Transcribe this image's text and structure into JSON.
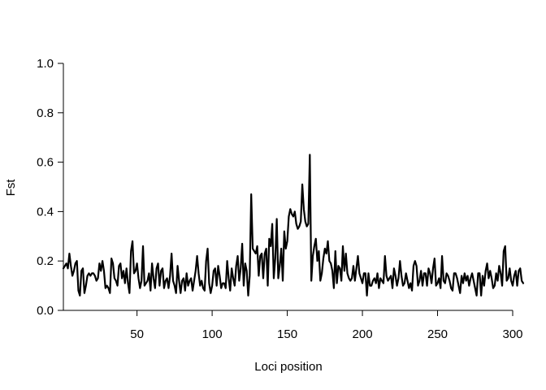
{
  "chart_data": {
    "type": "line",
    "title": "",
    "xlabel": "Loci position",
    "ylabel": "Fst",
    "xlim": [
      1,
      300
    ],
    "ylim": [
      0,
      1
    ],
    "x_ticks": [
      50,
      100,
      150,
      200,
      250,
      300
    ],
    "y_ticks": [
      0.0,
      0.2,
      0.4,
      0.6,
      0.8,
      1.0
    ],
    "y_tick_labels": [
      "0.0",
      "0.2",
      "0.4",
      "0.6",
      "0.8",
      "1.0"
    ],
    "grid": false,
    "legend": "none",
    "line_color": "#000000",
    "series": [
      {
        "x_start": 1,
        "x_step": 1,
        "values": [
          0.17,
          0.18,
          0.19,
          0.17,
          0.23,
          0.18,
          0.14,
          0.16,
          0.19,
          0.2,
          0.08,
          0.06,
          0.16,
          0.17,
          0.07,
          0.1,
          0.14,
          0.15,
          0.14,
          0.15,
          0.15,
          0.14,
          0.12,
          0.13,
          0.19,
          0.16,
          0.2,
          0.16,
          0.09,
          0.1,
          0.09,
          0.07,
          0.21,
          0.19,
          0.13,
          0.12,
          0.1,
          0.18,
          0.19,
          0.13,
          0.16,
          0.11,
          0.17,
          0.11,
          0.07,
          0.24,
          0.28,
          0.15,
          0.16,
          0.19,
          0.13,
          0.09,
          0.12,
          0.26,
          0.1,
          0.11,
          0.12,
          0.15,
          0.08,
          0.19,
          0.13,
          0.09,
          0.17,
          0.19,
          0.1,
          0.16,
          0.17,
          0.09,
          0.12,
          0.13,
          0.09,
          0.14,
          0.23,
          0.12,
          0.1,
          0.07,
          0.18,
          0.12,
          0.07,
          0.12,
          0.13,
          0.08,
          0.15,
          0.1,
          0.12,
          0.13,
          0.08,
          0.12,
          0.16,
          0.22,
          0.15,
          0.1,
          0.12,
          0.09,
          0.08,
          0.2,
          0.25,
          0.11,
          0.07,
          0.1,
          0.16,
          0.17,
          0.1,
          0.18,
          0.14,
          0.09,
          0.11,
          0.11,
          0.09,
          0.2,
          0.13,
          0.08,
          0.17,
          0.13,
          0.1,
          0.18,
          0.22,
          0.12,
          0.17,
          0.27,
          0.1,
          0.19,
          0.16,
          0.06,
          0.14,
          0.47,
          0.25,
          0.24,
          0.23,
          0.26,
          0.14,
          0.22,
          0.23,
          0.13,
          0.23,
          0.25,
          0.1,
          0.29,
          0.26,
          0.35,
          0.13,
          0.21,
          0.37,
          0.13,
          0.18,
          0.25,
          0.12,
          0.32,
          0.25,
          0.28,
          0.38,
          0.41,
          0.39,
          0.38,
          0.4,
          0.35,
          0.33,
          0.34,
          0.36,
          0.51,
          0.41,
          0.36,
          0.34,
          0.35,
          0.63,
          0.12,
          0.22,
          0.26,
          0.29,
          0.2,
          0.24,
          0.12,
          0.15,
          0.21,
          0.25,
          0.23,
          0.28,
          0.2,
          0.19,
          0.16,
          0.09,
          0.24,
          0.11,
          0.18,
          0.17,
          0.12,
          0.26,
          0.16,
          0.23,
          0.15,
          0.13,
          0.12,
          0.13,
          0.18,
          0.12,
          0.17,
          0.22,
          0.15,
          0.13,
          0.11,
          0.15,
          0.15,
          0.06,
          0.15,
          0.1,
          0.1,
          0.12,
          0.13,
          0.11,
          0.15,
          0.09,
          0.13,
          0.12,
          0.11,
          0.22,
          0.14,
          0.12,
          0.13,
          0.14,
          0.09,
          0.17,
          0.14,
          0.1,
          0.13,
          0.2,
          0.14,
          0.1,
          0.11,
          0.15,
          0.12,
          0.09,
          0.11,
          0.08,
          0.18,
          0.2,
          0.18,
          0.1,
          0.12,
          0.16,
          0.1,
          0.15,
          0.15,
          0.1,
          0.17,
          0.15,
          0.11,
          0.17,
          0.21,
          0.1,
          0.11,
          0.13,
          0.09,
          0.22,
          0.12,
          0.11,
          0.15,
          0.14,
          0.12,
          0.09,
          0.08,
          0.15,
          0.15,
          0.13,
          0.1,
          0.07,
          0.14,
          0.11,
          0.15,
          0.12,
          0.14,
          0.1,
          0.13,
          0.15,
          0.12,
          0.09,
          0.06,
          0.15,
          0.15,
          0.06,
          0.14,
          0.1,
          0.16,
          0.19,
          0.13,
          0.16,
          0.13,
          0.09,
          0.1,
          0.15,
          0.12,
          0.18,
          0.15,
          0.1,
          0.24,
          0.26,
          0.12,
          0.13,
          0.17,
          0.12,
          0.1,
          0.14,
          0.16,
          0.1,
          0.16,
          0.17,
          0.12,
          0.11
        ]
      }
    ]
  }
}
